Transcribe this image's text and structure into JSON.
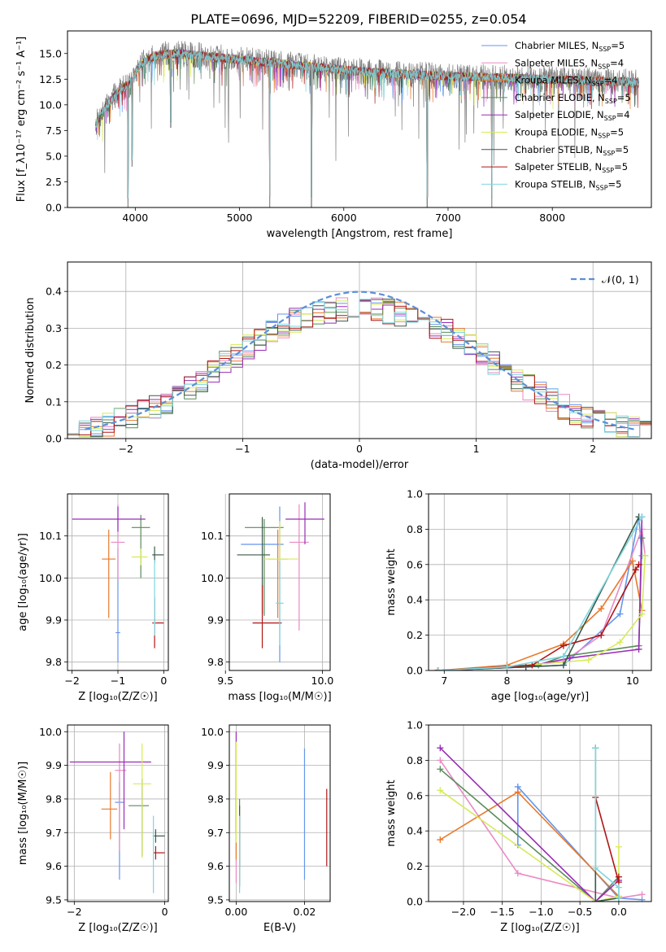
{
  "figure": {
    "title": "PLATE=0696, MJD=52209, FIBERID=0255, z=0.054"
  },
  "chart_data": [
    {
      "id": "spectrum",
      "type": "line",
      "xlabel": "wavelength [Angstrom, rest frame]",
      "ylabel": "Flux [f_λ10⁻¹⁷ erg cm⁻² s⁻¹ A⁻¹]",
      "xlim": [
        3350,
        8950
      ],
      "ylim": [
        0,
        17.2
      ],
      "xticks": [
        4000,
        5000,
        6000,
        7000,
        8000
      ],
      "yticks": [
        0.0,
        2.5,
        5.0,
        7.5,
        10.0,
        12.5,
        15.0
      ],
      "legend_position": "top-right",
      "legend": [
        {
          "label": "Chabrier MILES, N",
          "sub": "SSP",
          "tail": "=5",
          "color": "#6495ed"
        },
        {
          "label": "Salpeter MILES, N",
          "sub": "SSP",
          "tail": "=4",
          "color": "#e98ac4"
        },
        {
          "label": "Kroupa MILES, N",
          "sub": "SSP",
          "tail": "=4",
          "color": "#e8792b"
        },
        {
          "label": "Chabrier ELODIE, N",
          "sub": "SSP",
          "tail": "=5",
          "color": "#5a8a5a"
        },
        {
          "label": "Salpeter ELODIE, N",
          "sub": "SSP",
          "tail": "=4",
          "color": "#9a2bb8"
        },
        {
          "label": "Kroupa ELODIE, N",
          "sub": "SSP",
          "tail": "=5",
          "color": "#d7ea5a"
        },
        {
          "label": "Chabrier STELIB, N",
          "sub": "SSP",
          "tail": "=5",
          "color": "#3a5a4a"
        },
        {
          "label": "Salpeter STELIB, N",
          "sub": "SSP",
          "tail": "=5",
          "color": "#b01515"
        },
        {
          "label": "Kroupa STELIB, N",
          "sub": "SSP",
          "tail": "=5",
          "color": "#7ed6de"
        }
      ],
      "data_color": "#808080",
      "continuum": {
        "x": [
          3600,
          3700,
          3850,
          3950,
          4050,
          4200,
          4400,
          4600,
          4800,
          5000,
          5200,
          5500,
          5800,
          6100,
          6400,
          6700,
          7000,
          7300,
          7600,
          7900,
          8200,
          8500,
          8800
        ],
        "y": [
          7.8,
          9.5,
          11.5,
          12.0,
          14.0,
          14.8,
          15.0,
          14.8,
          14.6,
          14.4,
          14.2,
          13.9,
          13.6,
          13.3,
          13.1,
          12.9,
          12.8,
          12.7,
          12.6,
          12.5,
          12.4,
          12.3,
          12.2
        ]
      },
      "dips": [
        {
          "x": 3930,
          "y": 0
        },
        {
          "x": 3970,
          "y": 4.0
        },
        {
          "x": 4340,
          "y": 7.8
        },
        {
          "x": 5290,
          "y": 0
        },
        {
          "x": 5690,
          "y": 0
        },
        {
          "x": 6800,
          "y": 0
        },
        {
          "x": 7420,
          "y": 0
        }
      ]
    },
    {
      "id": "residuals",
      "type": "step",
      "xlabel": "(data-model)/error",
      "ylabel": "Normed distribution",
      "xlim": [
        -2.5,
        2.5
      ],
      "ylim": [
        0,
        0.48
      ],
      "xticks": [
        -2,
        -1,
        0,
        1,
        2
      ],
      "yticks": [
        0.0,
        0.1,
        0.2,
        0.3,
        0.4
      ],
      "legend_label": "𝒩(0, 1)",
      "legend_color": "#5b8fd6",
      "legend_position": "top-right",
      "bin_width": 0.1,
      "bin_start": -2.5,
      "noise_amplitude": 0.035
    },
    {
      "id": "age-vs-Z",
      "type": "errorbar",
      "xlabel": "Z [log₁₀(Z/Z☉)]",
      "ylabel": "age  [log₁₀(age/yr)]",
      "xlim": [
        -2.1,
        0.1
      ],
      "ylim": [
        9.78,
        10.2
      ],
      "xticks": [
        -2,
        -1,
        0
      ],
      "yticks": [
        9.8,
        9.9,
        10.0,
        10.1
      ],
      "points": [
        {
          "x": -1.0,
          "xerr": [
            0.05,
            0.05
          ],
          "y": 9.87,
          "yerr": [
            0.07,
            0.2
          ],
          "color": "#6495ed"
        },
        {
          "x": -1.0,
          "xerr": [
            0.15,
            0.15
          ],
          "y": 10.085,
          "yerr": [
            0.09,
            0.09
          ],
          "color": "#e98ac4"
        },
        {
          "x": -1.2,
          "xerr": [
            0.15,
            0.15
          ],
          "y": 10.045,
          "yerr": [
            0.14,
            0.07
          ],
          "color": "#e8792b"
        },
        {
          "x": -0.5,
          "xerr": [
            0.2,
            0.2
          ],
          "y": 10.12,
          "yerr": [
            0.12,
            0.03
          ],
          "color": "#5a8a5a"
        },
        {
          "x": -1.0,
          "xerr": [
            1.0,
            0.6
          ],
          "y": 10.14,
          "yerr": [
            0.03,
            0.03
          ],
          "color": "#9a2bb8"
        },
        {
          "x": -0.5,
          "xerr": [
            0.2,
            0.15
          ],
          "y": 10.05,
          "yerr": [
            0.02,
            0.02
          ],
          "color": "#d7ea5a"
        },
        {
          "x": -0.2,
          "xerr": [
            0.05,
            0.2
          ],
          "y": 10.055,
          "yerr": [
            0.02,
            0.02
          ],
          "color": "#3a5a4a"
        },
        {
          "x": -0.2,
          "xerr": [
            0.05,
            0.2
          ],
          "y": 9.893,
          "yerr": [
            0.06,
            0.06
          ],
          "color": "#b01515"
        },
        {
          "x": -0.2,
          "xerr": [
            0.02,
            0.02
          ],
          "y": 9.893,
          "yerr": [
            0.03,
            0.15
          ],
          "color": "#7ed6de"
        }
      ]
    },
    {
      "id": "age-vs-mass",
      "type": "errorbar",
      "xlabel": "mass [log₁₀(M/M☉)]",
      "ylabel": "",
      "xlim": [
        9.52,
        10.04
      ],
      "ylim": [
        9.78,
        10.2
      ],
      "xticks": [
        9.5,
        10.0
      ],
      "yticks": [
        9.8,
        9.9,
        10.0,
        10.1
      ],
      "points": [
        {
          "x": 9.78,
          "xerr": [
            0.2,
            0.02
          ],
          "y": 10.08,
          "yerr": [
            0.28,
            0.09
          ],
          "color": "#6495ed"
        },
        {
          "x": 9.88,
          "xerr": [
            0.05,
            0.05
          ],
          "y": 10.085,
          "yerr": [
            0.21,
            0.09
          ],
          "color": "#e98ac4"
        },
        {
          "x": 9.77,
          "xerr": [
            0.05,
            0.05
          ],
          "y": 10.045,
          "yerr": [
            0.14,
            0.07
          ],
          "color": "#e8792b"
        },
        {
          "x": 9.7,
          "xerr": [
            0.1,
            0.1
          ],
          "y": 10.12,
          "yerr": [
            0.21,
            0.02
          ],
          "color": "#5a8a5a"
        },
        {
          "x": 9.91,
          "xerr": [
            0.1,
            0.1
          ],
          "y": 10.14,
          "yerr": [
            0.06,
            0.04
          ],
          "color": "#9a2bb8"
        },
        {
          "x": 9.78,
          "xerr": [
            0.08,
            0.1
          ],
          "y": 10.045,
          "yerr": [
            0.02,
            0.09
          ],
          "color": "#d7ea5a"
        },
        {
          "x": 9.69,
          "xerr": [
            0.13,
            0.04
          ],
          "y": 10.055,
          "yerr": [
            0.14,
            0.09
          ],
          "color": "#3a5a4a"
        },
        {
          "x": 9.69,
          "xerr": [
            0.05,
            0.1
          ],
          "y": 9.893,
          "yerr": [
            0.06,
            0.09
          ],
          "color": "#b01515"
        },
        {
          "x": 9.78,
          "xerr": [
            0.02,
            0.02
          ],
          "y": 9.94,
          "yerr": [
            0.1,
            0.1
          ],
          "color": "#7ed6de"
        }
      ]
    },
    {
      "id": "weight-vs-age",
      "type": "line",
      "xlabel": "age  [log₁₀(age/yr)]",
      "ylabel": "mass weight",
      "xlim": [
        6.75,
        10.3
      ],
      "ylim": [
        0,
        1.0
      ],
      "xticks": [
        7,
        8,
        9,
        10
      ],
      "yticks": [
        0.0,
        0.2,
        0.4,
        0.6,
        0.8,
        1.0
      ],
      "series": [
        {
          "color": "#6495ed",
          "x": [
            6.9,
            8.3,
            8.9,
            9.8,
            10.1,
            10.15
          ],
          "y": [
            0.0,
            0.02,
            0.03,
            0.32,
            0.87,
            0.65
          ]
        },
        {
          "color": "#e98ac4",
          "x": [
            6.9,
            8.0,
            8.9,
            9.5,
            10.15,
            10.2
          ],
          "y": [
            0.0,
            0.02,
            0.05,
            0.2,
            0.8,
            0.65
          ]
        },
        {
          "color": "#e8792b",
          "x": [
            6.9,
            8.0,
            8.9,
            9.5,
            10.0,
            10.15
          ],
          "y": [
            0.0,
            0.03,
            0.15,
            0.35,
            0.62,
            0.34
          ]
        },
        {
          "color": "#5a8a5a",
          "x": [
            6.9,
            8.5,
            8.9,
            10.1,
            10.15
          ],
          "y": [
            0.0,
            0.03,
            0.08,
            0.14,
            0.75
          ]
        },
        {
          "color": "#9a2bb8",
          "x": [
            6.9,
            8.3,
            9.0,
            10.1,
            10.15
          ],
          "y": [
            0.0,
            0.02,
            0.07,
            0.12,
            0.87
          ]
        },
        {
          "color": "#d7ea5a",
          "x": [
            6.9,
            8.0,
            9.3,
            9.8,
            10.15,
            10.2
          ],
          "y": [
            0.0,
            0.02,
            0.06,
            0.16,
            0.32,
            0.65
          ]
        },
        {
          "color": "#3a5a4a",
          "x": [
            6.9,
            8.3,
            8.9,
            10.1
          ],
          "y": [
            0.0,
            0.02,
            0.03,
            0.87
          ]
        },
        {
          "color": "#b01515",
          "x": [
            6.9,
            8.4,
            8.9,
            9.5,
            10.05,
            10.1
          ],
          "y": [
            0.0,
            0.03,
            0.14,
            0.2,
            0.57,
            0.6
          ]
        },
        {
          "color": "#7ed6de",
          "x": [
            6.9,
            8.0,
            8.9,
            10.15
          ],
          "y": [
            0.0,
            0.02,
            0.08,
            0.87
          ]
        }
      ]
    },
    {
      "id": "mass-vs-Z",
      "type": "errorbar",
      "xlabel": "Z [log₁₀(Z/Z☉)]",
      "ylabel": "mass [log₁₀(M/M☉)]",
      "xlim": [
        -2.15,
        0.08
      ],
      "ylim": [
        9.495,
        10.02
      ],
      "xticks": [
        -2,
        0
      ],
      "yticks": [
        9.5,
        9.6,
        9.7,
        9.8,
        9.9,
        10.0
      ],
      "points": [
        {
          "x": -1.0,
          "xerr": [
            0.1,
            0.1
          ],
          "y": 9.79,
          "yerr": [
            0.23,
            0.06
          ],
          "color": "#6495ed"
        },
        {
          "x": -1.0,
          "xerr": [
            0.1,
            0.15
          ],
          "y": 9.885,
          "yerr": [
            0.24,
            0.08
          ],
          "color": "#e98ac4"
        },
        {
          "x": -1.2,
          "xerr": [
            0.2,
            0.15
          ],
          "y": 9.77,
          "yerr": [
            0.09,
            0.11
          ],
          "color": "#e8792b"
        },
        {
          "x": -0.5,
          "xerr": [
            0.3,
            0.15
          ],
          "y": 9.78,
          "yerr": [
            0.15,
            0.08
          ],
          "color": "#5a8a5a"
        },
        {
          "x": -0.9,
          "xerr": [
            1.2,
            0.6
          ],
          "y": 9.91,
          "yerr": [
            0.2,
            0.09
          ],
          "color": "#9a2bb8"
        },
        {
          "x": -0.5,
          "xerr": [
            0.2,
            0.2
          ],
          "y": 9.845,
          "yerr": [
            0.22,
            0.12
          ],
          "color": "#d7ea5a"
        },
        {
          "x": -0.2,
          "xerr": [
            0.05,
            0.2
          ],
          "y": 9.69,
          "yerr": [
            0.02,
            0.02
          ],
          "color": "#3a5a4a"
        },
        {
          "x": -0.2,
          "xerr": [
            0.05,
            0.2
          ],
          "y": 9.64,
          "yerr": [
            0.02,
            0.02
          ],
          "color": "#b01515"
        },
        {
          "x": -0.25,
          "xerr": [
            0.02,
            0.02
          ],
          "y": 9.69,
          "yerr": [
            0.17,
            0.06
          ],
          "color": "#7ed6de"
        }
      ]
    },
    {
      "id": "mass-vs-EBV",
      "type": "errorbar",
      "xlabel": "E(B-V)",
      "ylabel": "",
      "xlim": [
        -0.002,
        0.0275
      ],
      "ylim": [
        9.495,
        10.02
      ],
      "xticks": [
        0.0,
        0.02
      ],
      "yticks": [
        9.5,
        9.6,
        9.7,
        9.8,
        9.9,
        10.0
      ],
      "points": [
        {
          "x": 0.02,
          "xerr": [
            0,
            0
          ],
          "y": 9.75,
          "yerr": [
            0.19,
            0.2
          ],
          "color": "#6495ed"
        },
        {
          "x": 0.0,
          "xerr": [
            0,
            0
          ],
          "y": 9.75,
          "yerr": [
            0.2,
            0.22
          ],
          "color": "#e98ac4"
        },
        {
          "x": 0.0,
          "xerr": [
            0,
            0
          ],
          "y": 9.77,
          "yerr": [
            0.15,
            0.2
          ],
          "color": "#e8792b"
        },
        {
          "x": 0.001,
          "xerr": [
            0,
            0
          ],
          "y": 9.7,
          "yerr": [
            0.1,
            0.1
          ],
          "color": "#5a8a5a"
        },
        {
          "x": 0.0,
          "xerr": [
            0,
            0
          ],
          "y": 9.9,
          "yerr": [
            0.2,
            0.1
          ],
          "color": "#9a2bb8"
        },
        {
          "x": 0.0,
          "xerr": [
            0,
            0
          ],
          "y": 9.84,
          "yerr": [
            0.17,
            0.13
          ],
          "color": "#d7ea5a"
        },
        {
          "x": 0.001,
          "xerr": [
            0,
            0
          ],
          "y": 9.69,
          "yerr": [
            0.15,
            0.09
          ],
          "color": "#3a5a4a"
        },
        {
          "x": 0.0265,
          "xerr": [
            0,
            0
          ],
          "y": 9.72,
          "yerr": [
            0.12,
            0.11
          ],
          "color": "#b01515"
        },
        {
          "x": 0.001,
          "xerr": [
            0,
            0
          ],
          "y": 9.64,
          "yerr": [
            0.12,
            0.11
          ],
          "color": "#7ed6de"
        }
      ]
    },
    {
      "id": "weight-vs-Z",
      "type": "line",
      "xlabel": "Z [log₁₀(Z/Z☉)]",
      "ylabel": "mass weight",
      "xlim": [
        -2.45,
        0.42
      ],
      "ylim": [
        0,
        1.0
      ],
      "xticks": [
        -2.0,
        -1.5,
        -1.0,
        -0.5,
        0.0
      ],
      "yticks": [
        0.0,
        0.2,
        0.4,
        0.6,
        0.8,
        1.0
      ],
      "series": [
        {
          "color": "#6495ed",
          "x": [
            -1.3,
            -1.3,
            0.0,
            0.3
          ],
          "y": [
            0.32,
            0.65,
            0.02,
            0.01
          ]
        },
        {
          "color": "#e98ac4",
          "x": [
            -2.3,
            -1.3,
            0.0,
            0.3
          ],
          "y": [
            0.8,
            0.16,
            0.02,
            0.04
          ]
        },
        {
          "color": "#e8792b",
          "x": [
            -2.3,
            -1.3,
            0.0
          ],
          "y": [
            0.35,
            0.62,
            0.03
          ]
        },
        {
          "color": "#5a8a5a",
          "x": [
            -2.3,
            -0.3,
            0.0
          ],
          "y": [
            0.75,
            0.0,
            0.14
          ]
        },
        {
          "color": "#9a2bb8",
          "x": [
            -2.3,
            -0.3,
            0.0
          ],
          "y": [
            0.87,
            0.0,
            0.12
          ]
        },
        {
          "color": "#d7ea5a",
          "x": [
            -2.3,
            -0.3,
            0.0,
            0.0
          ],
          "y": [
            0.63,
            0.0,
            0.03,
            0.31
          ]
        },
        {
          "color": "#3a5a4a",
          "x": [
            -0.3,
            -0.3,
            0.0
          ],
          "y": [
            0.87,
            0.0,
            0.02
          ]
        },
        {
          "color": "#b01515",
          "x": [
            -0.3,
            0.0,
            0.0
          ],
          "y": [
            0.59,
            0.11,
            0.14
          ]
        },
        {
          "color": "#7ed6de",
          "x": [
            -0.3,
            -0.3,
            0.0,
            0.0
          ],
          "y": [
            0.87,
            0.19,
            0.08,
            0.02
          ]
        }
      ]
    }
  ]
}
